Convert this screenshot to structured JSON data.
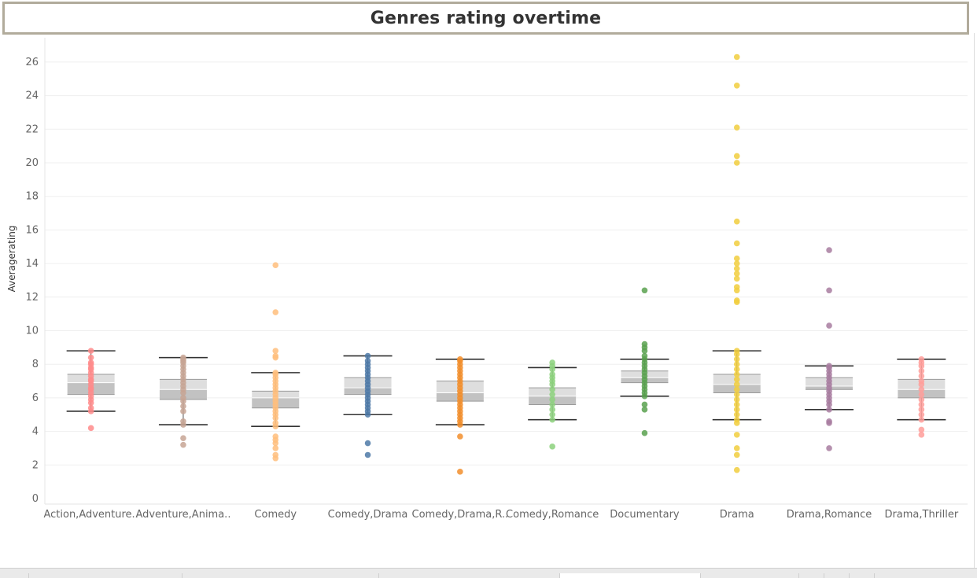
{
  "chart_data": {
    "type": "box-and-whisker with dot strip",
    "title": "Genres rating overtime",
    "xlabel": "",
    "ylabel": "Averagerating",
    "ylim": [
      0,
      27
    ],
    "yticks": [
      0,
      2,
      4,
      6,
      8,
      10,
      12,
      14,
      16,
      18,
      20,
      22,
      24,
      26
    ],
    "grid": "horizontal",
    "categories": [
      "Action,Adventure..",
      "Adventure,Anima..",
      "Comedy",
      "Comedy,Drama",
      "Comedy,Drama,R..",
      "Comedy,Romance",
      "Documentary",
      "Drama",
      "Drama,Romance",
      "Drama,Thriller"
    ],
    "colors": [
      "#ff8b8b",
      "#c7a594",
      "#ffbe7d",
      "#4e79a7",
      "#f28e2b",
      "#8cd17d",
      "#59a14f",
      "#f1ce3e",
      "#a87ca0",
      "#ff9d9a"
    ],
    "boxes": [
      {
        "lower_whisker": 5.2,
        "q1": 6.2,
        "median": 6.9,
        "q3": 7.4,
        "upper_whisker": 8.8
      },
      {
        "lower_whisker": 4.4,
        "q1": 5.9,
        "median": 6.5,
        "q3": 7.1,
        "upper_whisker": 8.4
      },
      {
        "lower_whisker": 4.3,
        "q1": 5.4,
        "median": 6.0,
        "q3": 6.4,
        "upper_whisker": 7.5
      },
      {
        "lower_whisker": 5.0,
        "q1": 6.2,
        "median": 6.6,
        "q3": 7.2,
        "upper_whisker": 8.5
      },
      {
        "lower_whisker": 4.4,
        "q1": 5.8,
        "median": 6.3,
        "q3": 7.0,
        "upper_whisker": 8.3
      },
      {
        "lower_whisker": 4.7,
        "q1": 5.6,
        "median": 6.1,
        "q3": 6.6,
        "upper_whisker": 7.8
      },
      {
        "lower_whisker": 6.1,
        "q1": 6.9,
        "median": 7.2,
        "q3": 7.6,
        "upper_whisker": 8.3
      },
      {
        "lower_whisker": 4.7,
        "q1": 6.3,
        "median": 6.8,
        "q3": 7.4,
        "upper_whisker": 8.8
      },
      {
        "lower_whisker": 5.3,
        "q1": 6.5,
        "median": 6.7,
        "q3": 7.2,
        "upper_whisker": 7.9
      },
      {
        "lower_whisker": 4.7,
        "q1": 6.0,
        "median": 6.5,
        "q3": 7.1,
        "upper_whisker": 8.3
      }
    ],
    "points": [
      [
        4.2,
        5.2,
        5.4,
        5.7,
        5.9,
        6.1,
        6.3,
        6.5,
        6.6,
        6.8,
        7.0,
        7.1,
        7.3,
        7.5,
        7.7,
        7.8,
        8.0,
        8.1,
        8.4,
        8.8
      ],
      [
        3.2,
        3.6,
        4.4,
        4.6,
        5.2,
        5.5,
        5.8,
        6.0,
        6.3,
        6.5,
        6.7,
        6.9,
        7.1,
        7.3,
        7.5,
        7.7,
        7.9,
        8.1,
        8.2,
        8.3,
        8.4
      ],
      [
        2.4,
        2.6,
        3.0,
        3.3,
        3.5,
        3.7,
        4.3,
        4.5,
        4.8,
        5.0,
        5.2,
        5.4,
        5.6,
        5.8,
        6.0,
        6.2,
        6.4,
        6.6,
        6.8,
        7.0,
        7.2,
        7.4,
        7.5,
        8.4,
        8.5,
        8.8,
        11.1,
        13.9
      ],
      [
        2.6,
        3.3,
        5.0,
        5.2,
        5.4,
        5.6,
        5.8,
        6.0,
        6.2,
        6.4,
        6.6,
        6.8,
        7.0,
        7.2,
        7.4,
        7.6,
        7.8,
        8.0,
        8.2,
        8.5
      ],
      [
        1.6,
        3.7,
        4.4,
        4.6,
        4.8,
        5.0,
        5.2,
        5.4,
        5.6,
        5.8,
        6.0,
        6.2,
        6.4,
        6.6,
        6.8,
        7.0,
        7.2,
        7.4,
        7.6,
        7.8,
        8.0,
        8.2,
        8.3
      ],
      [
        3.1,
        4.7,
        5.0,
        5.3,
        5.6,
        5.9,
        6.2,
        6.5,
        6.8,
        7.0,
        7.2,
        7.4,
        7.7,
        7.9,
        8.1
      ],
      [
        3.9,
        5.3,
        5.6,
        6.1,
        6.3,
        6.5,
        6.7,
        6.9,
        7.1,
        7.3,
        7.5,
        7.7,
        7.9,
        8.1,
        8.3,
        8.5,
        8.8,
        9.0,
        9.2,
        12.4
      ],
      [
        1.7,
        2.6,
        3.0,
        3.8,
        4.5,
        4.7,
        5.0,
        5.3,
        5.6,
        5.9,
        6.2,
        6.5,
        6.8,
        7.1,
        7.4,
        7.7,
        8.0,
        8.3,
        8.6,
        8.8,
        11.7,
        11.8,
        12.4,
        12.6,
        13.1,
        13.4,
        13.7,
        14.0,
        14.3,
        15.2,
        16.5,
        20.0,
        20.4,
        22.1,
        24.6,
        26.3
      ],
      [
        3.0,
        4.5,
        4.6,
        5.3,
        5.6,
        5.8,
        6.0,
        6.2,
        6.4,
        6.6,
        6.8,
        7.0,
        7.2,
        7.4,
        7.6,
        7.8,
        7.9,
        10.3,
        12.4,
        14.8
      ],
      [
        3.8,
        4.1,
        4.7,
        5.0,
        5.3,
        5.6,
        5.9,
        6.2,
        6.5,
        6.8,
        7.0,
        7.3,
        7.6,
        7.9,
        8.1,
        8.3
      ]
    ]
  }
}
